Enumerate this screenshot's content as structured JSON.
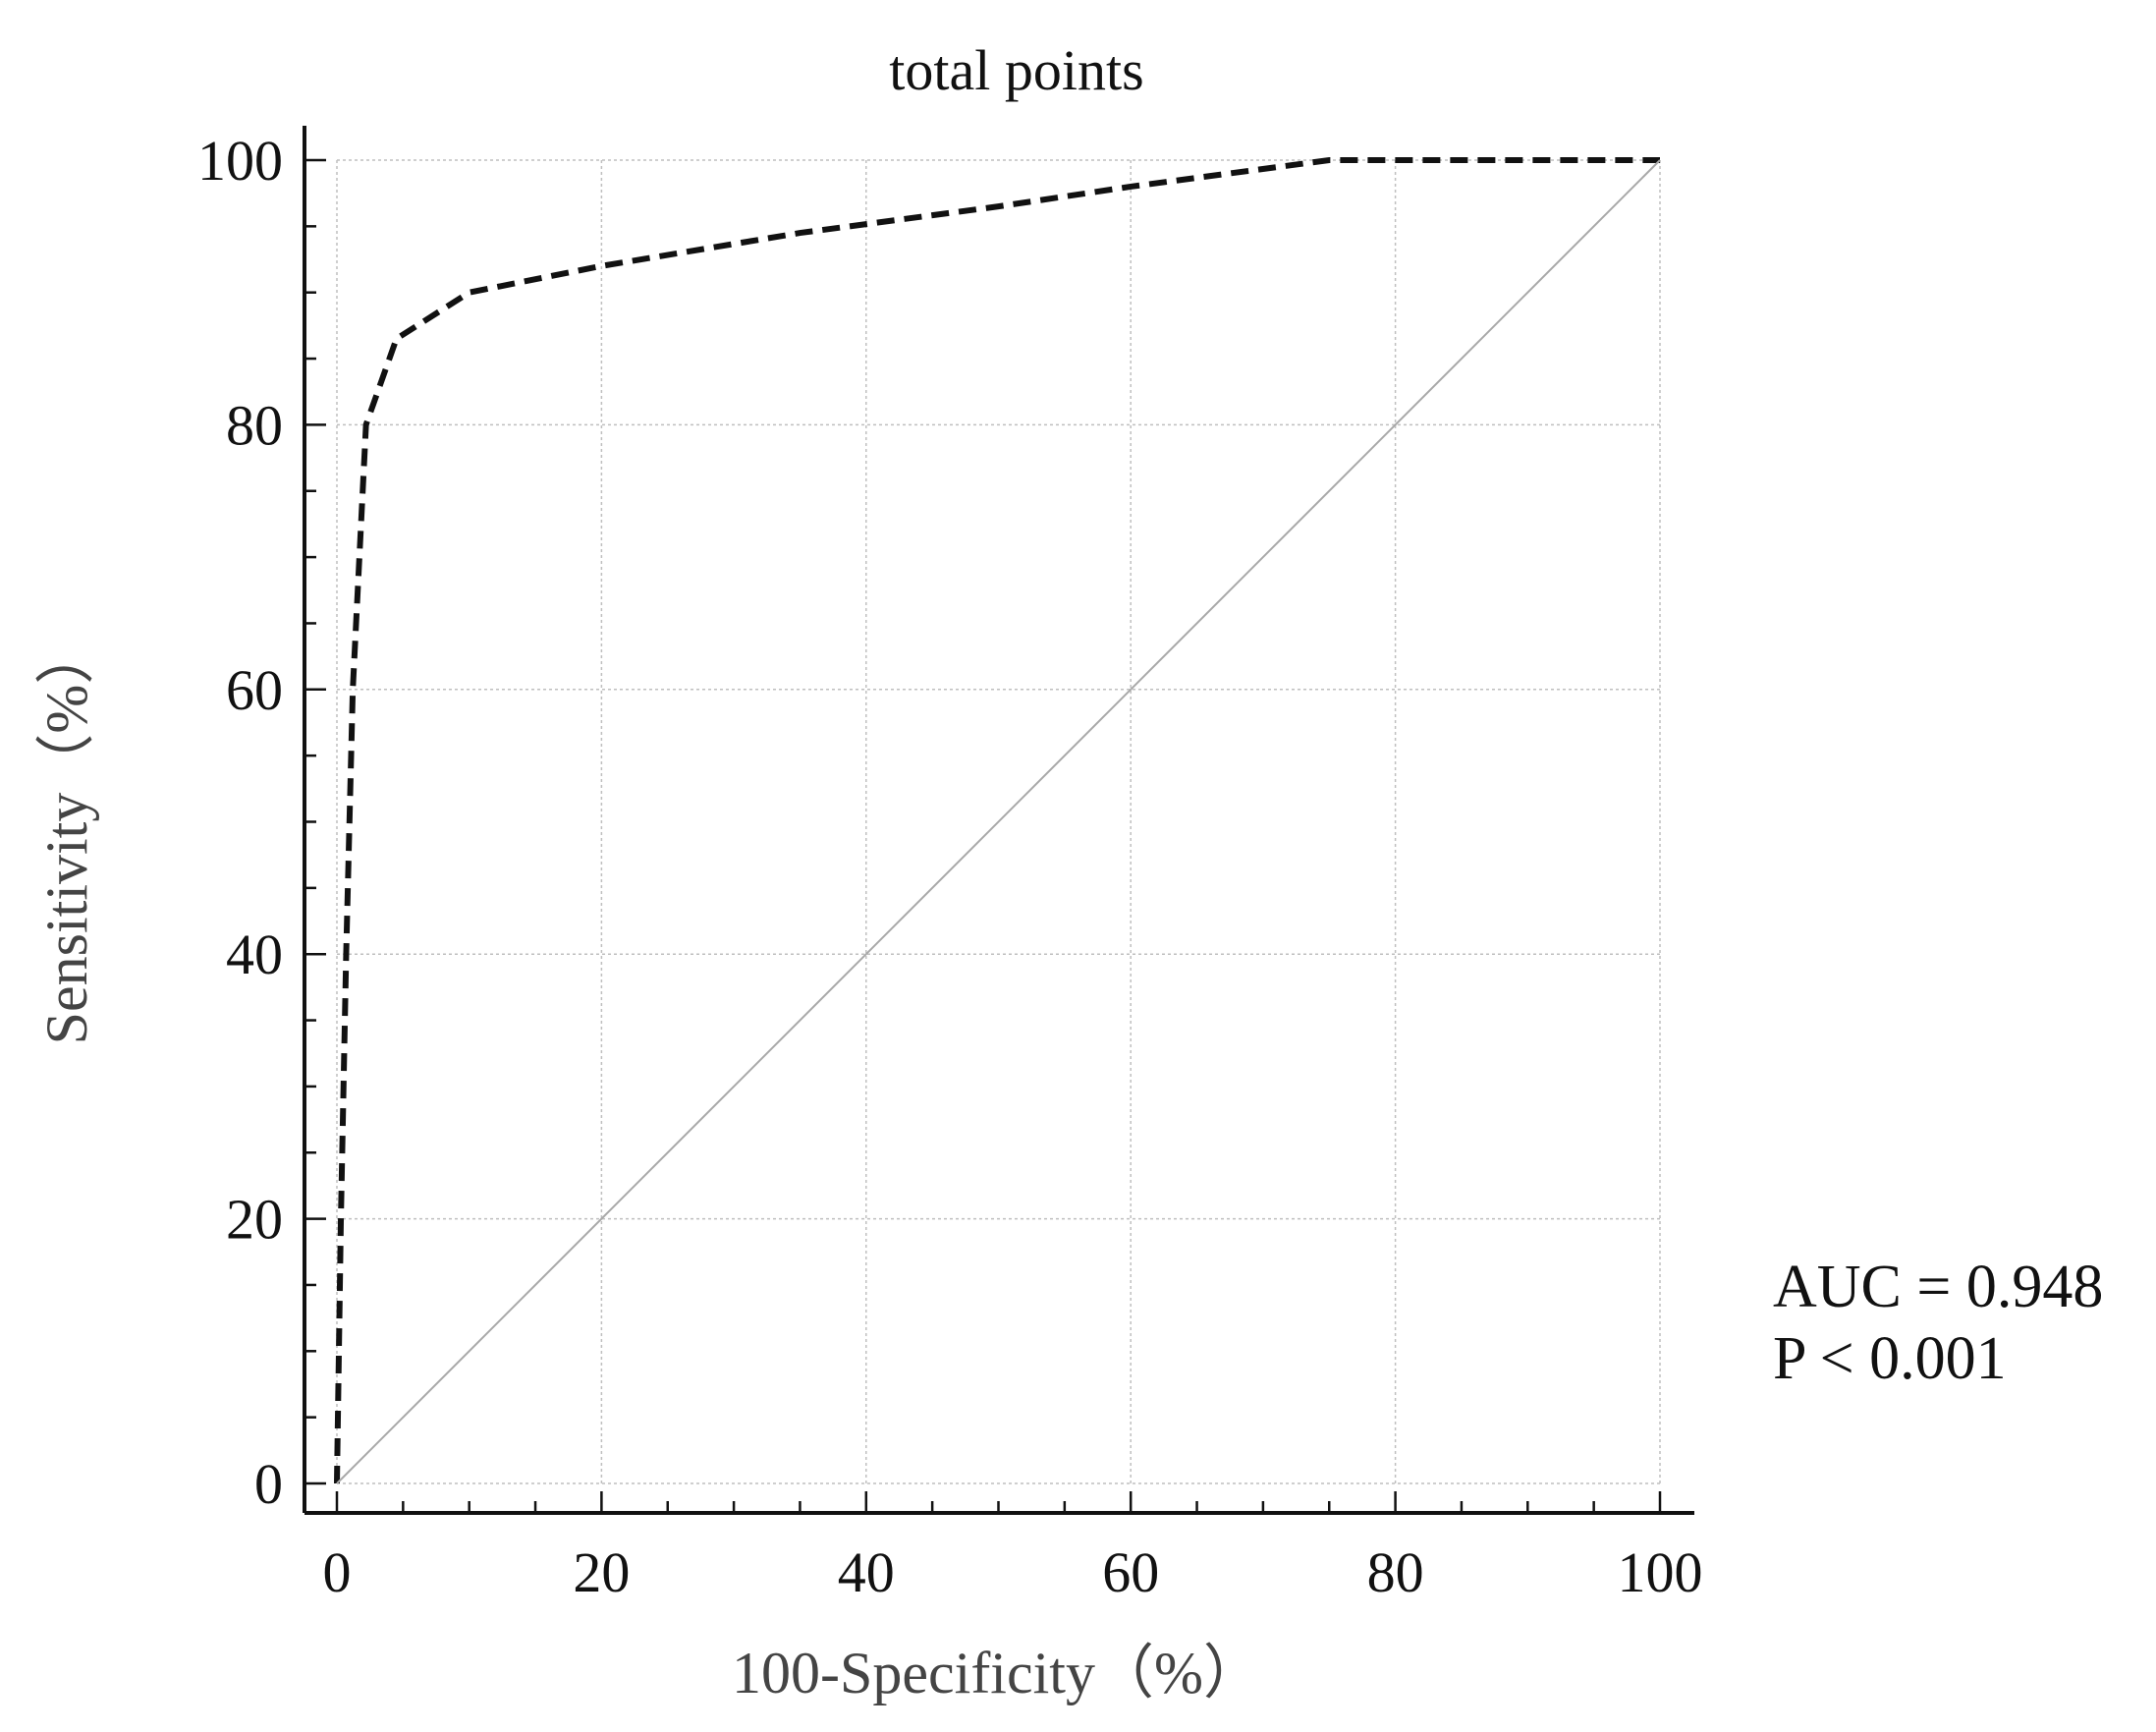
{
  "chart_data": {
    "type": "line",
    "title": "total points",
    "xlabel": "100-Specificity（%）",
    "ylabel": "Sensitivity（%）",
    "xlim": [
      0,
      100
    ],
    "ylim": [
      0,
      100
    ],
    "xticks": [
      0,
      20,
      40,
      60,
      80,
      100
    ],
    "yticks": [
      0,
      20,
      40,
      60,
      80,
      100
    ],
    "xtick_labels": [
      "0",
      "20",
      "40",
      "60",
      "80",
      "100"
    ],
    "ytick_labels": [
      "0",
      "20",
      "40",
      "60",
      "80",
      "100"
    ],
    "grid": true,
    "series": [
      {
        "line_style": "dashed",
        "color": "#111111",
        "x": [
          0,
          0.3,
          0.7,
          1.2,
          2.2,
          4.5,
          10,
          20,
          35,
          50,
          60,
          75,
          100
        ],
        "y": [
          0,
          20,
          40,
          60,
          80,
          86.5,
          90,
          92,
          94.5,
          96.5,
          98,
          100,
          100
        ]
      },
      {
        "line_style": "solid",
        "color": "#a8a8a8",
        "x": [
          0,
          100
        ],
        "y": [
          0,
          100
        ]
      }
    ],
    "annotations": [
      "AUC = 0.948",
      "P < 0.001"
    ]
  }
}
